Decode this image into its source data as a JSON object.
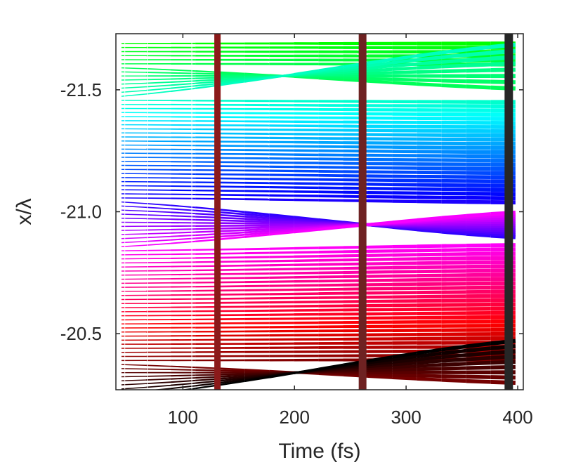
{
  "chart_data": {
    "type": "line",
    "title": "",
    "xlabel": "Time (fs)",
    "ylabel": "x/λ",
    "xlim": [
      40,
      405
    ],
    "ylim": [
      -21.73,
      -20.27
    ],
    "y_reversed": true,
    "grid": false,
    "x_ticks": [
      {
        "value": 100,
        "label": "100"
      },
      {
        "value": 200,
        "label": "200"
      },
      {
        "value": 300,
        "label": "300"
      },
      {
        "value": 400,
        "label": "400"
      }
    ],
    "y_ticks": [
      {
        "value": -21.5,
        "label": "-21.5"
      },
      {
        "value": -21.0,
        "label": "-21.0"
      },
      {
        "value": -20.5,
        "label": "-20.5"
      }
    ],
    "series": {
      "description": "Color-coded trajectories of particles, colored by initial position (green at -21.69 through cyan, blue, magenta, red to black at -20.24). Line width increases with time.",
      "start_time": 45,
      "end_time": 398,
      "count": 88,
      "initial_position_range": [
        -21.69,
        -20.24
      ],
      "color_stops": [
        {
          "t": 0.0,
          "color": "#00ff00"
        },
        {
          "t": 0.2,
          "color": "#00ffff"
        },
        {
          "t": 0.42,
          "color": "#0000ff"
        },
        {
          "t": 0.58,
          "color": "#ff00ff"
        },
        {
          "t": 0.8,
          "color": "#ff0000"
        },
        {
          "t": 1.0,
          "color": "#000000"
        }
      ],
      "crossing_groups": [
        {
          "name": "cyan-band",
          "from": [
            -21.6,
            -21.47
          ],
          "to": [
            -21.69,
            -21.49
          ]
        },
        {
          "name": "purple-band",
          "from": [
            -21.05,
            -20.85
          ],
          "to": [
            -21.0,
            -20.89
          ]
        },
        {
          "name": "black-band",
          "from": [
            -20.38,
            -20.24
          ],
          "to": [
            -20.47,
            -20.29
          ]
        }
      ]
    },
    "vertical_markers": [
      {
        "time": 48,
        "color": "#ffffff",
        "width": 1
      },
      {
        "time": 68,
        "color": "#ffffff",
        "width": 1
      },
      {
        "time": 108,
        "color": "#ffffff",
        "width": 1
      },
      {
        "time": 131,
        "color": "#8b1a1a",
        "width": 9
      },
      {
        "time": 261,
        "color": "#6e2222",
        "width": 11
      },
      {
        "time": 392,
        "color": "#262626",
        "width": 12
      }
    ]
  }
}
